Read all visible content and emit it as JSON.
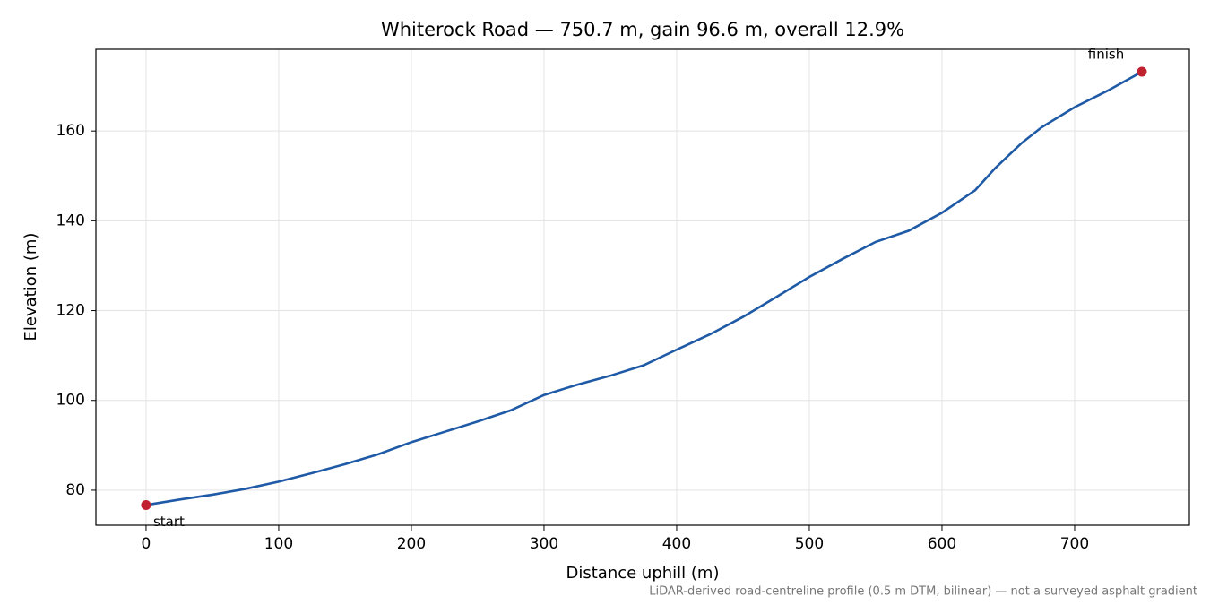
{
  "chart_data": {
    "type": "line",
    "title": "Whiterock Road — 750.7 m, gain 96.6 m, overall 12.9%",
    "x_label": "Distance uphill (m)",
    "y_label": "Elevation (m)",
    "footnote": "LiDAR-derived road-centreline profile (0.5 m DTM, bilinear) — not a surveyed asphalt gradient",
    "start_label": "start",
    "finish_label": "finish",
    "x": [
      0,
      25,
      50,
      75,
      100,
      125,
      150,
      175,
      200,
      225,
      250,
      275,
      300,
      325,
      350,
      375,
      400,
      425,
      450,
      475,
      500,
      525,
      550,
      575,
      600,
      625,
      640,
      650,
      660,
      675,
      700,
      725,
      750.7
    ],
    "series": [
      {
        "name": "Elevation",
        "color": "#1f5aa6",
        "values": [
          76.7,
          77.9,
          79.0,
          80.3,
          81.9,
          83.8,
          85.8,
          88.0,
          90.7,
          93.0,
          95.3,
          97.8,
          101.2,
          103.5,
          105.5,
          107.8,
          111.3,
          114.7,
          118.6,
          123.0,
          127.5,
          131.5,
          135.3,
          137.8,
          141.8,
          146.8,
          151.7,
          154.5,
          157.3,
          160.8,
          165.3,
          169.0,
          173.2
        ]
      }
    ],
    "marker_color": "#c1202f",
    "xlim": [
      -37.8,
      786.5
    ],
    "ylim": [
      72.2,
      178.2
    ],
    "xticks": [
      0,
      100,
      200,
      300,
      400,
      500,
      600,
      700
    ],
    "yticks": [
      80,
      100,
      120,
      140,
      160
    ],
    "grid": true
  }
}
